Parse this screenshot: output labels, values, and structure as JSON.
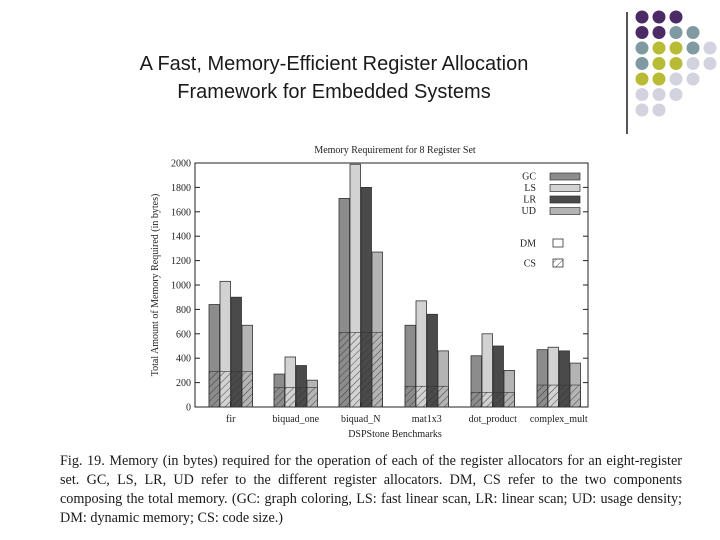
{
  "slide": {
    "title_line1": "A Fast, Memory-Efficient Register Allocation",
    "title_line2": "Framework for Embedded Systems",
    "dot_colors": [
      "#4b2a66",
      "#7f9aa0",
      "#b8bc35",
      "#d3d3e0"
    ]
  },
  "chart_data": {
    "type": "bar",
    "title": "Memory Requirement for 8 Register Set",
    "xlabel": "DSPStone Benchmarks",
    "ylabel": "Total Amount of Memory Required (in bytes)",
    "ylim": [
      0,
      2000
    ],
    "yticks": [
      0,
      200,
      400,
      600,
      800,
      1000,
      1200,
      1400,
      1600,
      1800,
      2000
    ],
    "categories": [
      "fir",
      "biquad_one",
      "biquad_N",
      "mat1x3",
      "dot_product",
      "complex_mult"
    ],
    "series": [
      {
        "name": "GC",
        "values": [
          840,
          270,
          1710,
          670,
          420,
          470
        ],
        "color": "#8c8c8c"
      },
      {
        "name": "LS",
        "values": [
          1030,
          410,
          1990,
          870,
          600,
          490
        ],
        "color": "#d2d2d2"
      },
      {
        "name": "LR",
        "values": [
          900,
          340,
          1800,
          760,
          500,
          460
        ],
        "color": "#4a4a4a"
      },
      {
        "name": "UD",
        "values": [
          670,
          220,
          1270,
          460,
          300,
          360
        ],
        "color": "#b4b4b4"
      }
    ],
    "code_size": {
      "name": "CS",
      "values": [
        290,
        160,
        610,
        170,
        120,
        180
      ]
    },
    "dynamic_memory": {
      "name": "DM"
    },
    "grid": false,
    "legend_position": "top-right"
  },
  "caption": "Fig. 19.   Memory (in bytes) required for the operation of each of the register allocators for an eight-register set. GC, LS, LR, UD refer to the different register allocators. DM, CS refer to the two components composing the total memory. (GC: graph coloring, LS: fast linear scan, LR: linear scan; UD: usage density; DM: dynamic memory; CS: code size.)"
}
